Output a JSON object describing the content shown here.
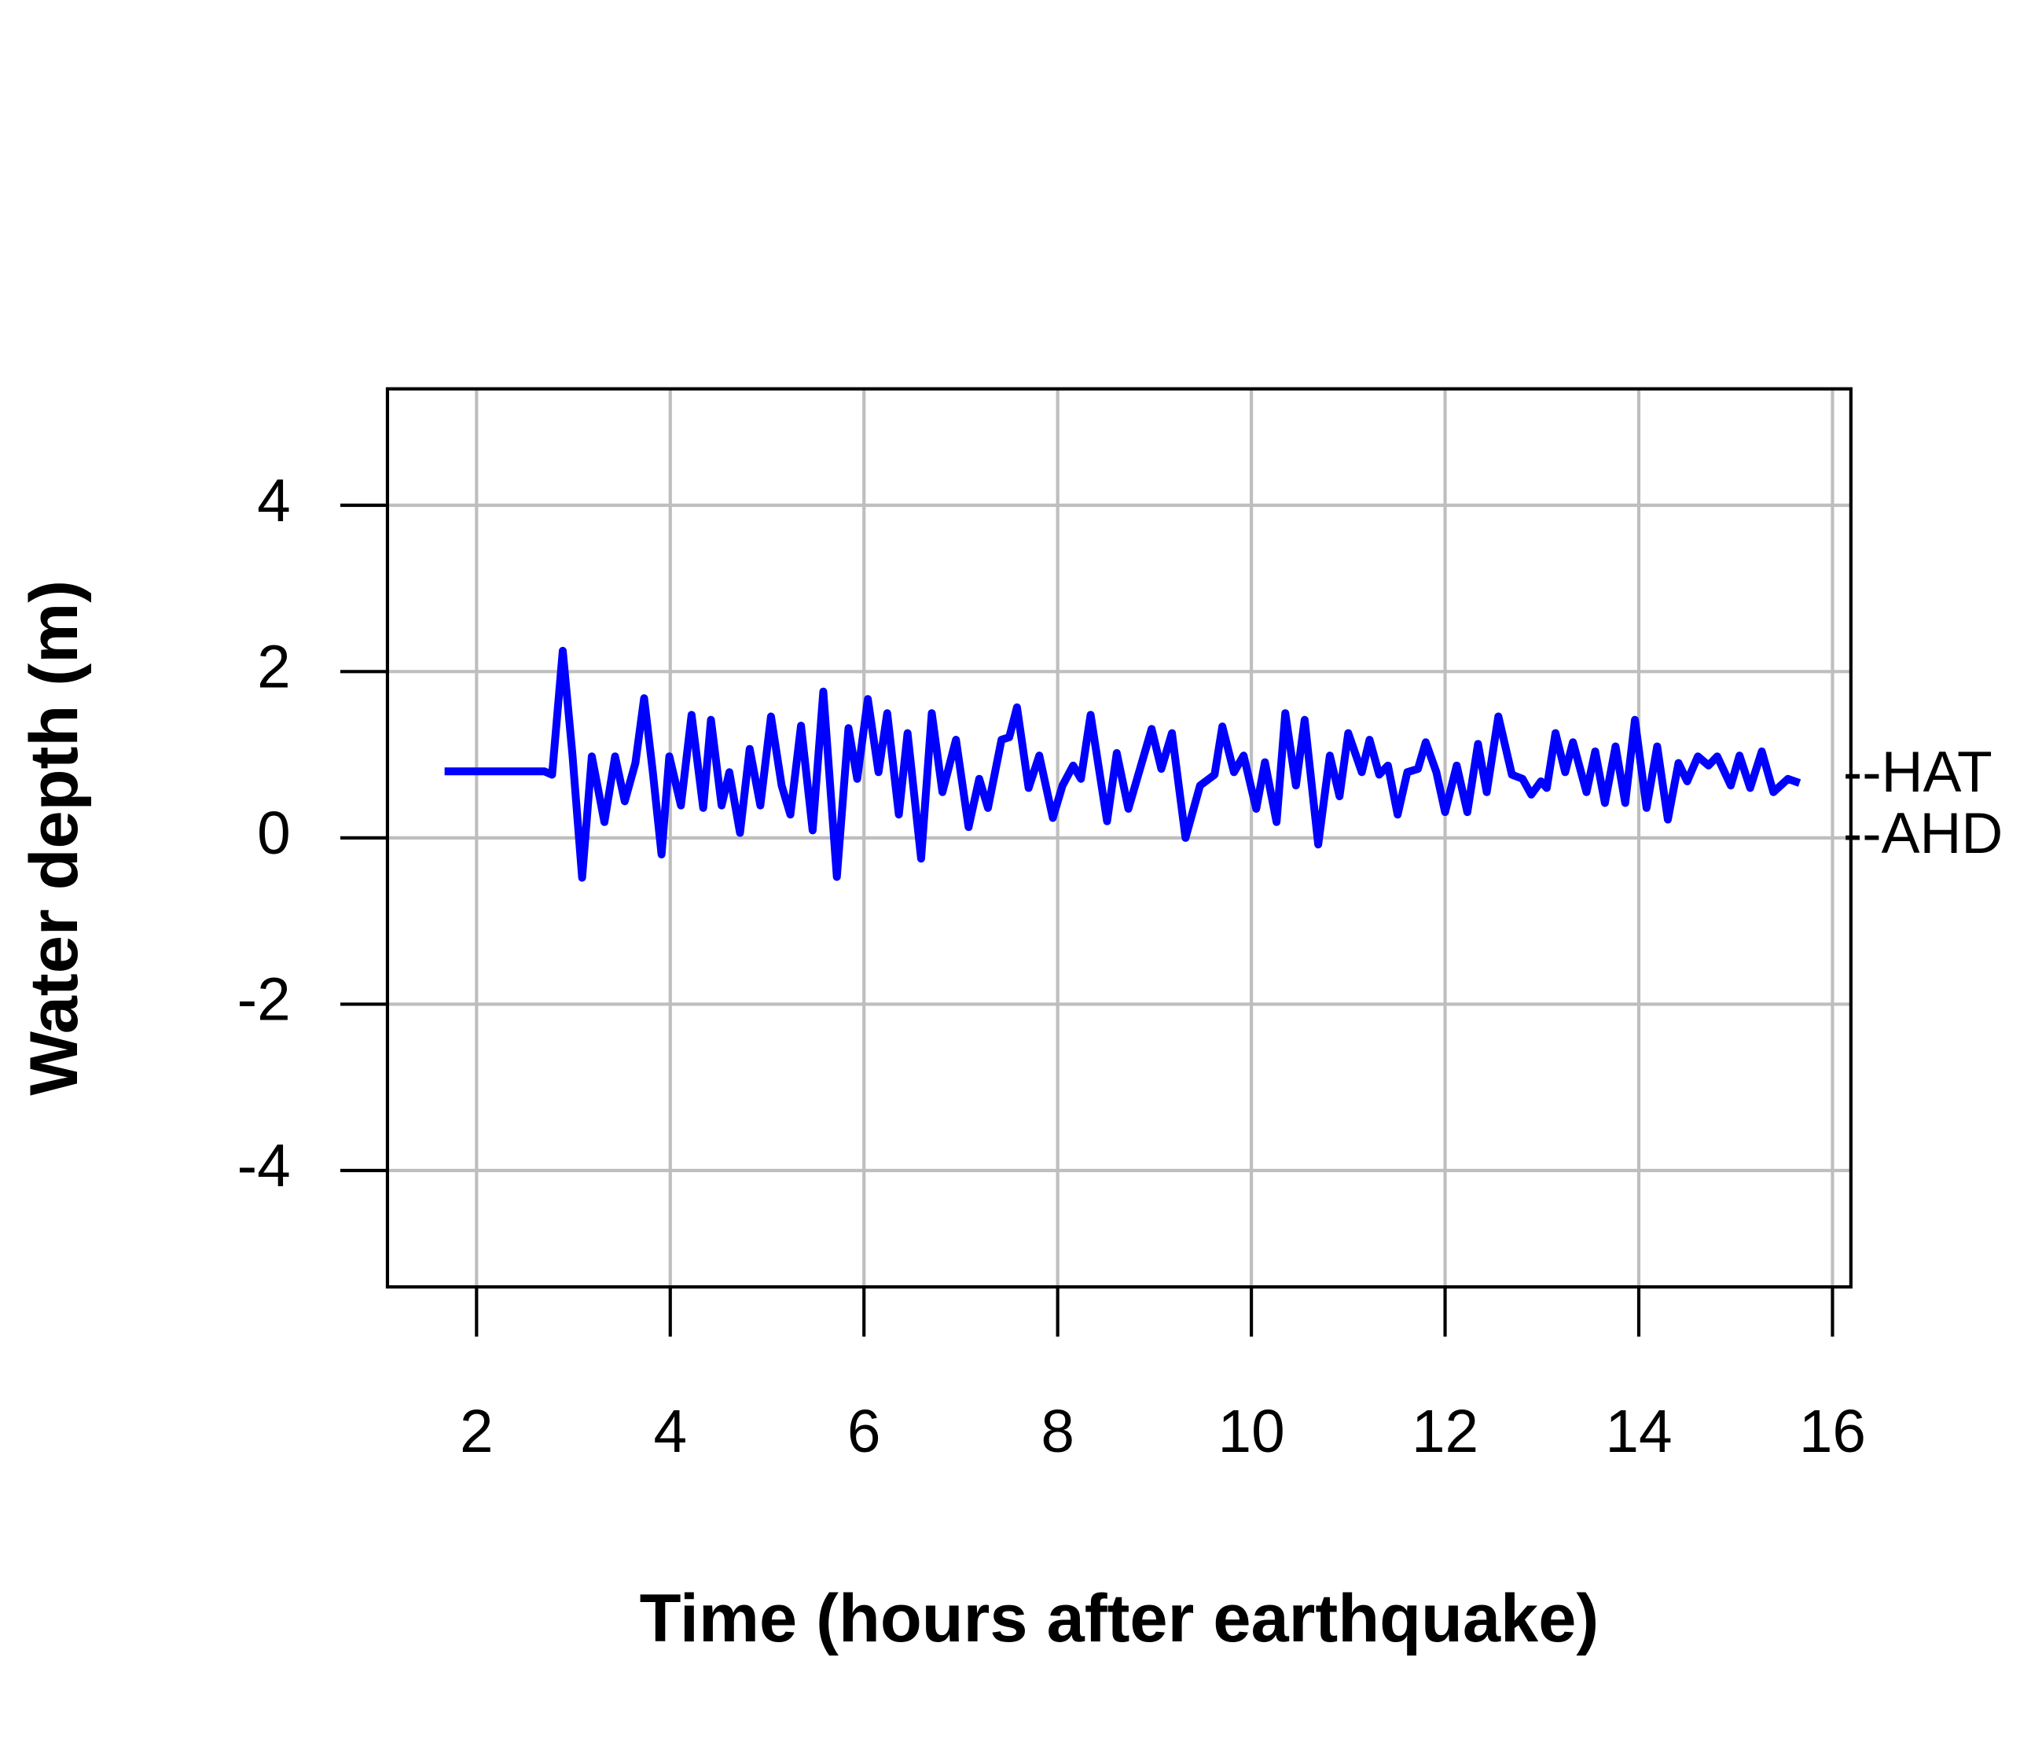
{
  "chart_data": {
    "type": "line",
    "xlabel": "Time (hours after earthquake)",
    "ylabel": "Water depth (m)",
    "xlim": [
      1.08,
      16.19
    ],
    "ylim": [
      -5.4,
      5.4
    ],
    "xticks": [
      2,
      4,
      6,
      8,
      10,
      12,
      14,
      16
    ],
    "yticks": [
      -4,
      -2,
      0,
      2,
      4
    ],
    "grid": true,
    "annotations": [
      {
        "text": "--HAT",
        "y": 0.74
      },
      {
        "text": "--AHD",
        "y": 0
      }
    ],
    "series": [
      {
        "color": "#0000ff",
        "x": [
          1.67,
          2.7,
          2.78,
          2.89,
          2.99,
          3.09,
          3.19,
          3.32,
          3.43,
          3.53,
          3.64,
          3.73,
          3.82,
          3.91,
          3.99,
          4.11,
          4.22,
          4.34,
          4.42,
          4.53,
          4.61,
          4.72,
          4.82,
          4.93,
          5.04,
          5.15,
          5.24,
          5.35,
          5.47,
          5.58,
          5.72,
          5.84,
          5.93,
          6.04,
          6.15,
          6.24,
          6.36,
          6.45,
          6.59,
          6.7,
          6.81,
          6.95,
          7.08,
          7.19,
          7.28,
          7.42,
          7.5,
          7.58,
          7.7,
          7.81,
          7.95,
          8.05,
          8.16,
          8.24,
          8.34,
          8.51,
          8.61,
          8.73,
          8.82,
          8.97,
          9.07,
          9.18,
          9.32,
          9.47,
          9.62,
          9.7,
          9.82,
          9.92,
          10.05,
          10.14,
          10.26,
          10.35,
          10.46,
          10.55,
          10.69,
          10.81,
          10.91,
          11.0,
          11.14,
          11.22,
          11.32,
          11.41,
          11.51,
          11.61,
          11.72,
          11.8,
          11.91,
          12.0,
          12.12,
          12.23,
          12.34,
          12.43,
          12.55,
          12.69,
          12.8,
          12.89,
          12.99,
          13.05,
          13.14,
          13.24,
          13.32,
          13.46,
          13.55,
          13.65,
          13.76,
          13.86,
          13.96,
          14.08,
          14.19,
          14.3,
          14.41,
          14.5,
          14.61,
          14.72,
          14.81,
          14.95,
          15.04,
          15.15,
          15.27,
          15.39,
          15.54,
          15.66
        ],
        "values": [
          0.8,
          0.8,
          0.76,
          2.25,
          1.0,
          -0.48,
          0.98,
          0.19,
          0.98,
          0.44,
          0.9,
          1.68,
          0.79,
          -0.2,
          0.98,
          0.39,
          1.48,
          0.36,
          1.42,
          0.39,
          0.79,
          0.06,
          1.07,
          0.39,
          1.46,
          0.63,
          0.28,
          1.35,
          0.09,
          1.76,
          -0.47,
          1.32,
          0.71,
          1.67,
          0.79,
          1.5,
          0.28,
          1.26,
          -0.25,
          1.5,
          0.55,
          1.18,
          0.13,
          0.71,
          0.36,
          1.18,
          1.21,
          1.57,
          0.6,
          0.99,
          0.24,
          0.63,
          0.87,
          0.71,
          1.48,
          0.2,
          1.02,
          0.35,
          0.71,
          1.31,
          0.83,
          1.26,
          0.0,
          0.63,
          0.76,
          1.34,
          0.79,
          0.99,
          0.35,
          0.91,
          0.19,
          1.5,
          0.63,
          1.42,
          -0.08,
          0.99,
          0.5,
          1.26,
          0.79,
          1.18,
          0.76,
          0.87,
          0.28,
          0.79,
          0.83,
          1.15,
          0.79,
          0.31,
          0.87,
          0.31,
          1.13,
          0.55,
          1.46,
          0.76,
          0.71,
          0.52,
          0.68,
          0.6,
          1.26,
          0.79,
          1.15,
          0.55,
          1.04,
          0.42,
          1.1,
          0.42,
          1.42,
          0.36,
          1.1,
          0.22,
          0.9,
          0.68,
          0.98,
          0.87,
          0.98,
          0.63,
          0.99,
          0.6,
          1.04,
          0.55,
          0.71,
          0.66
        ]
      }
    ]
  }
}
